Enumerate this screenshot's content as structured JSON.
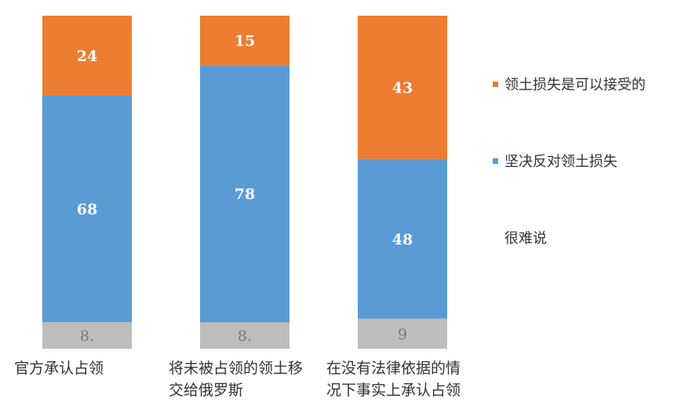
{
  "chart_data": {
    "type": "bar",
    "stacked": true,
    "categories": [
      "官方承认占领",
      "将未被占领的领土移\n交给俄罗斯",
      "在没有法律依据的情\n况下事实上承认占领"
    ],
    "series": [
      {
        "name": "很难说",
        "color": "#bdbdbd",
        "values": [
          8,
          8,
          9
        ],
        "labels": [
          "8.",
          "8.",
          "9"
        ]
      },
      {
        "name": "坚决反对领土损失",
        "color": "#5b9bd5",
        "values": [
          68,
          78,
          48
        ],
        "labels": [
          "68",
          "78",
          "48"
        ]
      },
      {
        "name": "领土损失是可以接受的",
        "color": "#ed7d31",
        "values": [
          24,
          15,
          43
        ],
        "labels": [
          "24",
          "15",
          "43"
        ]
      }
    ],
    "legend_order": [
      2,
      1,
      0
    ],
    "ylim": [
      0,
      100
    ],
    "legend_position": "right",
    "grid": false
  }
}
